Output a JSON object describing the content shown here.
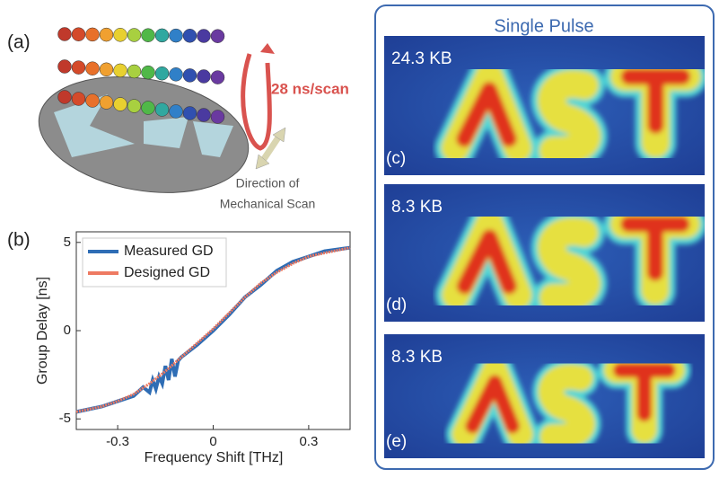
{
  "panel_a": {
    "label": "(a)",
    "rate": "28 ns/scan",
    "direction": [
      "Direction of",
      "Mechanical Scan"
    ]
  },
  "chart_data": {
    "type": "line",
    "panel_label": "(b)",
    "xlabel": "Frequency Shift [THz]",
    "ylabel": "Group Delay [ns]",
    "xlim": [
      -0.43,
      0.43
    ],
    "ylim": [
      -5.6,
      5.6
    ],
    "xticks": [
      -0.3,
      0,
      0.3
    ],
    "yticks": [
      -5,
      0,
      5
    ],
    "series": [
      {
        "name": "Measured GD",
        "color": "#2e6db5",
        "x": [
          -0.43,
          -0.35,
          -0.3,
          -0.25,
          -0.22,
          -0.2,
          -0.19,
          -0.18,
          -0.17,
          -0.16,
          -0.15,
          -0.14,
          -0.13,
          -0.12,
          -0.11,
          -0.1,
          -0.05,
          0,
          0.05,
          0.1,
          0.15,
          0.2,
          0.25,
          0.3,
          0.35,
          0.43
        ],
        "values": [
          -4.6,
          -4.3,
          -4.0,
          -3.7,
          -3.2,
          -3.5,
          -2.8,
          -3.3,
          -2.6,
          -3.0,
          -2.0,
          -2.8,
          -1.6,
          -2.6,
          -1.7,
          -1.5,
          -0.8,
          0.0,
          0.9,
          1.9,
          2.6,
          3.4,
          3.9,
          4.2,
          4.5,
          4.7
        ]
      },
      {
        "name": "Designed GD",
        "color": "#ee7a62",
        "x": [
          -0.43,
          -0.35,
          -0.3,
          -0.25,
          -0.2,
          -0.15,
          -0.1,
          -0.05,
          0,
          0.05,
          0.1,
          0.15,
          0.2,
          0.25,
          0.3,
          0.35,
          0.43
        ],
        "values": [
          -4.6,
          -4.3,
          -4.0,
          -3.6,
          -3.0,
          -2.3,
          -1.5,
          -0.7,
          0.1,
          1.0,
          1.9,
          2.7,
          3.3,
          3.8,
          4.2,
          4.4,
          4.7
        ]
      }
    ]
  },
  "images_title": "Single Pulse",
  "images": [
    {
      "size": "24.3 KB",
      "label": "(c)"
    },
    {
      "size": "8.3 KB",
      "label": "(d)"
    },
    {
      "size": "8.3 KB",
      "label": "(e)"
    }
  ]
}
